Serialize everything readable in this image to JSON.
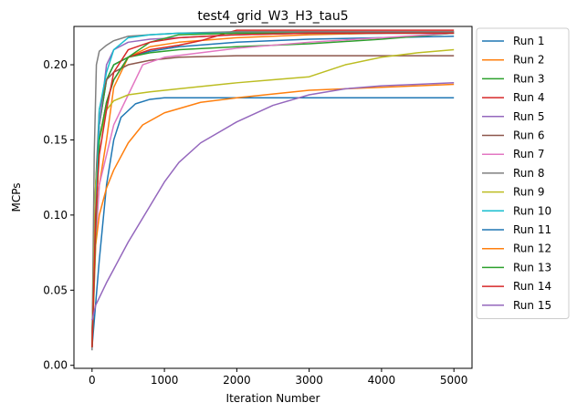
{
  "chart_data": {
    "type": "line",
    "title": "test4_grid_W3_H3_tau5",
    "xlabel": "Iteration Number",
    "ylabel": "MCPs",
    "xlim": [
      -250,
      5250
    ],
    "ylim": [
      -0.002,
      0.2255
    ],
    "xticks": [
      0,
      1000,
      2000,
      3000,
      4000,
      5000
    ],
    "xtick_labels": [
      "0",
      "1000",
      "2000",
      "3000",
      "4000",
      "5000"
    ],
    "yticks": [
      0.0,
      0.05,
      0.1,
      0.15,
      0.2
    ],
    "ytick_labels": [
      "0.00",
      "0.05",
      "0.10",
      "0.15",
      "0.20"
    ],
    "grid": false,
    "legend_position": "outside-right",
    "series": [
      {
        "name": "Run 1",
        "color": "#1f77b4",
        "x": [
          0,
          50,
          100,
          200,
          300,
          500,
          800,
          1200,
          2000,
          3000,
          4000,
          5000
        ],
        "y": [
          0.012,
          0.1,
          0.16,
          0.19,
          0.2,
          0.205,
          0.209,
          0.212,
          0.215,
          0.217,
          0.218,
          0.219
        ]
      },
      {
        "name": "Run 2",
        "color": "#ff7f0e",
        "x": [
          0,
          50,
          100,
          200,
          300,
          500,
          800,
          1200,
          2000,
          3000,
          4000,
          5000
        ],
        "y": [
          0.02,
          0.09,
          0.12,
          0.15,
          0.185,
          0.205,
          0.212,
          0.215,
          0.218,
          0.22,
          0.221,
          0.222
        ]
      },
      {
        "name": "Run 3",
        "color": "#2ca02c",
        "x": [
          0,
          50,
          100,
          200,
          300,
          500,
          800,
          1200,
          2000,
          3000,
          4000,
          5000
        ],
        "y": [
          0.02,
          0.12,
          0.16,
          0.19,
          0.2,
          0.205,
          0.208,
          0.21,
          0.212,
          0.214,
          0.217,
          0.221
        ]
      },
      {
        "name": "Run 4",
        "color": "#d62728",
        "x": [
          0,
          50,
          100,
          200,
          300,
          500,
          800,
          1200,
          1500,
          2000,
          3000,
          4000,
          5000
        ],
        "y": [
          0.012,
          0.1,
          0.15,
          0.175,
          0.19,
          0.205,
          0.21,
          0.213,
          0.216,
          0.223,
          0.223,
          0.223,
          0.223
        ]
      },
      {
        "name": "Run 5",
        "color": "#9467bd",
        "x": [
          0,
          50,
          100,
          200,
          300,
          500,
          800,
          1200,
          2000,
          3000,
          4000,
          5000
        ],
        "y": [
          0.018,
          0.11,
          0.16,
          0.2,
          0.21,
          0.215,
          0.217,
          0.218,
          0.22,
          0.221,
          0.221,
          0.222
        ]
      },
      {
        "name": "Run 6",
        "color": "#8c564b",
        "x": [
          0,
          50,
          100,
          200,
          300,
          500,
          800,
          1200,
          2000,
          3000,
          4000,
          5000
        ],
        "y": [
          0.015,
          0.12,
          0.17,
          0.19,
          0.195,
          0.2,
          0.203,
          0.205,
          0.206,
          0.206,
          0.206,
          0.206
        ]
      },
      {
        "name": "Run 7",
        "color": "#e377c2",
        "x": [
          0,
          50,
          100,
          200,
          300,
          500,
          700,
          1000,
          1500,
          2000,
          3000,
          4000,
          5000
        ],
        "y": [
          0.015,
          0.08,
          0.12,
          0.14,
          0.16,
          0.18,
          0.2,
          0.205,
          0.208,
          0.211,
          0.215,
          0.218,
          0.221
        ]
      },
      {
        "name": "Run 8",
        "color": "#7f7f7f",
        "x": [
          0,
          30,
          60,
          100,
          200,
          300,
          500,
          800,
          1200,
          2000,
          3000,
          4000,
          5000
        ],
        "y": [
          0.01,
          0.14,
          0.2,
          0.209,
          0.213,
          0.216,
          0.219,
          0.22,
          0.221,
          0.222,
          0.222,
          0.222,
          0.222
        ]
      },
      {
        "name": "Run 9",
        "color": "#bcbd22",
        "x": [
          0,
          50,
          100,
          200,
          300,
          500,
          800,
          1200,
          2000,
          2500,
          3000,
          3500,
          4000,
          4500,
          5000
        ],
        "y": [
          0.015,
          0.12,
          0.15,
          0.17,
          0.176,
          0.18,
          0.182,
          0.184,
          0.188,
          0.19,
          0.192,
          0.2,
          0.205,
          0.208,
          0.21
        ]
      },
      {
        "name": "Run 10",
        "color": "#17becf",
        "x": [
          0,
          50,
          100,
          200,
          300,
          500,
          800,
          1200,
          2000,
          3000,
          4000,
          5000
        ],
        "y": [
          0.012,
          0.1,
          0.17,
          0.195,
          0.21,
          0.218,
          0.22,
          0.221,
          0.221,
          0.221,
          0.221,
          0.221
        ]
      },
      {
        "name": "Run 11",
        "color": "#1f77b4",
        "x": [
          0,
          100,
          200,
          300,
          400,
          600,
          800,
          1000,
          1500,
          2000,
          3000,
          4000,
          5000
        ],
        "y": [
          0.012,
          0.07,
          0.12,
          0.15,
          0.165,
          0.174,
          0.177,
          0.178,
          0.178,
          0.178,
          0.178,
          0.178,
          0.178
        ]
      },
      {
        "name": "Run 12",
        "color": "#ff7f0e",
        "x": [
          0,
          50,
          100,
          200,
          300,
          500,
          700,
          1000,
          1500,
          2000,
          3000,
          4000,
          5000
        ],
        "y": [
          0.012,
          0.08,
          0.1,
          0.118,
          0.13,
          0.148,
          0.16,
          0.168,
          0.175,
          0.178,
          0.183,
          0.185,
          0.187
        ]
      },
      {
        "name": "Run 13",
        "color": "#2ca02c",
        "x": [
          0,
          50,
          100,
          200,
          300,
          500,
          800,
          1200,
          2000,
          3000,
          4000,
          5000
        ],
        "y": [
          0.012,
          0.09,
          0.15,
          0.175,
          0.19,
          0.205,
          0.215,
          0.22,
          0.221,
          0.221,
          0.221,
          0.221
        ]
      },
      {
        "name": "Run 14",
        "color": "#d62728",
        "x": [
          0,
          50,
          100,
          200,
          300,
          500,
          800,
          1200,
          2000,
          3000,
          4000,
          5000
        ],
        "y": [
          0.012,
          0.1,
          0.14,
          0.17,
          0.195,
          0.21,
          0.215,
          0.218,
          0.22,
          0.221,
          0.221,
          0.221
        ]
      },
      {
        "name": "Run 15",
        "color": "#9467bd",
        "x": [
          0,
          50,
          100,
          200,
          300,
          500,
          800,
          1000,
          1200,
          1500,
          2000,
          2500,
          3000,
          3500,
          4000,
          4500,
          5000
        ],
        "y": [
          0.03,
          0.04,
          0.045,
          0.055,
          0.064,
          0.082,
          0.106,
          0.122,
          0.135,
          0.148,
          0.162,
          0.173,
          0.18,
          0.184,
          0.186,
          0.187,
          0.188
        ]
      }
    ]
  }
}
